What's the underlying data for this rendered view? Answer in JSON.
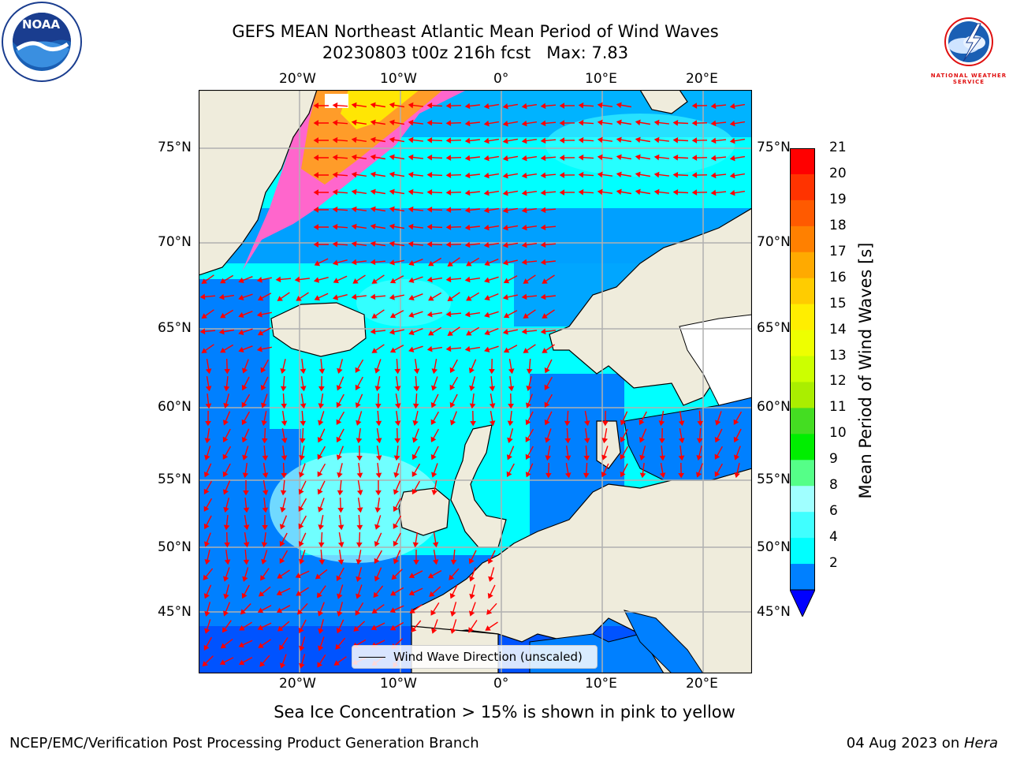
{
  "title": {
    "line1": "GEFS MEAN Northeast Atlantic Mean Period of Wind Waves",
    "line2": "20230803 t00z 216h fcst   Max: 7.83"
  },
  "logos": {
    "left": {
      "icon": "noaa-logo",
      "text": "NOAA"
    },
    "right": {
      "icon": "national-weather-service-logo",
      "text": "NATIONAL WEATHER SERVICE"
    }
  },
  "map": {
    "projection": "lat-lon",
    "lon_ticks": [
      "20°W",
      "10°W",
      "0°",
      "10°E",
      "20°E"
    ],
    "lat_ticks": [
      "75°N",
      "70°N",
      "65°N",
      "60°N",
      "55°N",
      "50°N",
      "45°N"
    ],
    "land_color": "#efecdc",
    "ocean_colors": [
      "#0000ff",
      "#0080ff",
      "#00ffff",
      "#40ffff",
      "#a0ffff"
    ],
    "arrow_color": "#ff0000",
    "grid": true
  },
  "legend": {
    "label": "Wind Wave Direction (unscaled)"
  },
  "colorbar": {
    "title": "Mean Period of Wind Waves [s]",
    "ticks": [
      "21",
      "20",
      "19",
      "18",
      "17",
      "16",
      "15",
      "14",
      "13",
      "12",
      "11",
      "10",
      "9",
      "8",
      "6",
      "4",
      "2"
    ],
    "colors": [
      "#ff0000",
      "#ff3300",
      "#ff5a00",
      "#ff8000",
      "#ffaa00",
      "#ffcc00",
      "#ffee00",
      "#eeff00",
      "#ccff00",
      "#aaee00",
      "#44dd22",
      "#00ee00",
      "#55ff88",
      "#a0ffff",
      "#40ffff",
      "#00ffff",
      "#0080ff"
    ],
    "extend_color": "#0000ff"
  },
  "caption": "Sea Ice Concentration > 15% is shown in pink to yellow",
  "footer": {
    "left": "NCEP/EMC/Verification Post Processing Product Generation Branch",
    "date": "04 Aug 2023 on ",
    "machine": "Hera"
  }
}
